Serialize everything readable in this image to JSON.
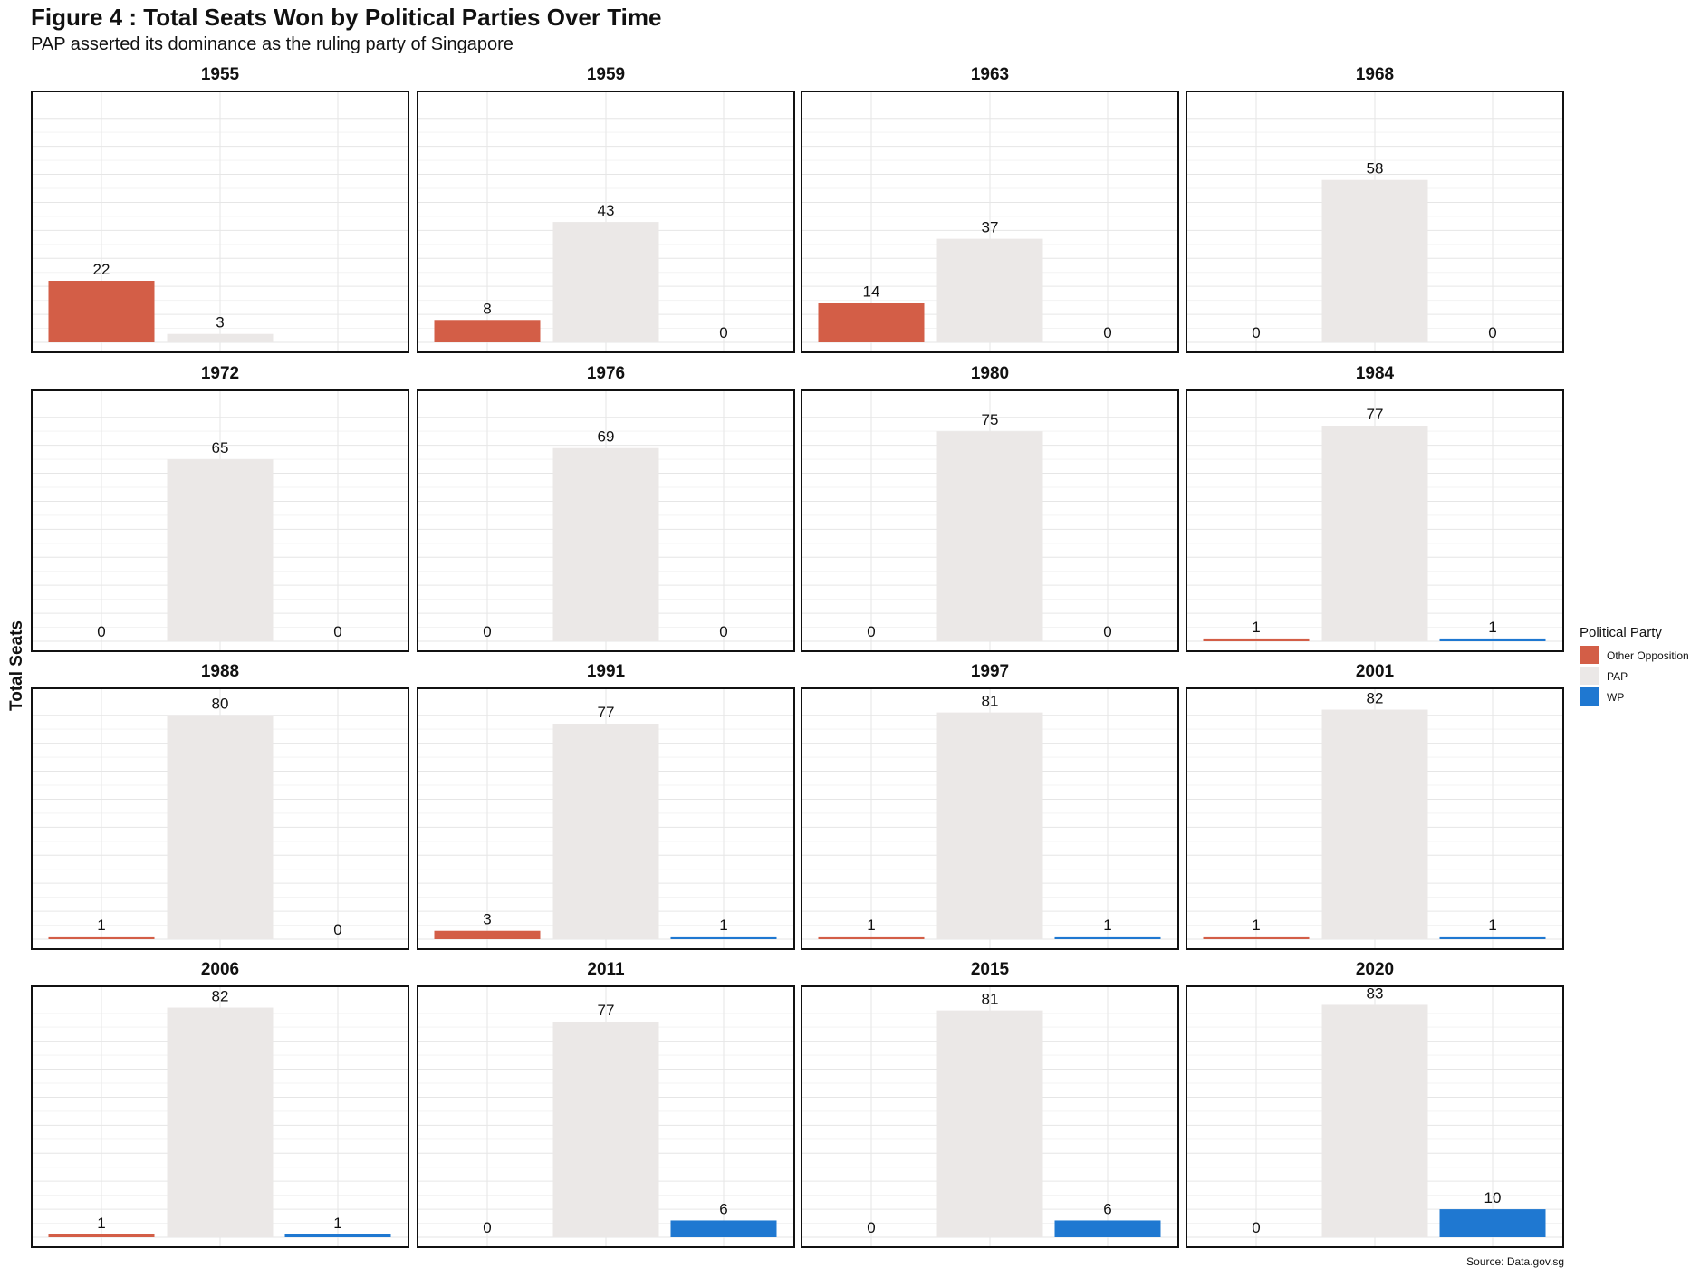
{
  "title": "Figure 4 : Total Seats Won by Political Parties Over Time",
  "subtitle": "PAP asserted its dominance as the ruling party of Singapore",
  "source": "Source: Data.gov.sg",
  "colors": {
    "Other Opposition": "#d35e47",
    "PAP": "#ebe8e7",
    "WP": "#1f78d1"
  },
  "legend_title": "Political Party",
  "legend": [
    "Other Opposition",
    "PAP",
    "WP"
  ],
  "chart_data": {
    "type": "bar",
    "faceted": "4x4 grid of panels, one per election year",
    "ylabel": "Total Seats",
    "xlabel": "",
    "ylim": [
      0,
      88
    ],
    "grid": true,
    "legend_position": "right",
    "categories": [
      "Other Opposition",
      "PAP",
      "WP"
    ],
    "panels": [
      {
        "year": "1955",
        "values": [
          22,
          3,
          null
        ],
        "labels": [
          "22",
          "3",
          ""
        ]
      },
      {
        "year": "1959",
        "values": [
          8,
          43,
          0
        ],
        "labels": [
          "8",
          "43",
          "0"
        ]
      },
      {
        "year": "1963",
        "values": [
          14,
          37,
          0
        ],
        "labels": [
          "14",
          "37",
          "0"
        ]
      },
      {
        "year": "1968",
        "values": [
          0,
          58,
          0
        ],
        "labels": [
          "0",
          "58",
          "0"
        ]
      },
      {
        "year": "1972",
        "values": [
          0,
          65,
          0
        ],
        "labels": [
          "0",
          "65",
          "0"
        ]
      },
      {
        "year": "1976",
        "values": [
          0,
          69,
          0
        ],
        "labels": [
          "0",
          "69",
          "0"
        ]
      },
      {
        "year": "1980",
        "values": [
          0,
          75,
          0
        ],
        "labels": [
          "0",
          "75",
          "0"
        ]
      },
      {
        "year": "1984",
        "values": [
          1,
          77,
          1
        ],
        "labels": [
          "1",
          "77",
          "1"
        ]
      },
      {
        "year": "1988",
        "values": [
          1,
          80,
          0
        ],
        "labels": [
          "1",
          "80",
          "0"
        ]
      },
      {
        "year": "1991",
        "values": [
          3,
          77,
          1
        ],
        "labels": [
          "3",
          "77",
          "1"
        ]
      },
      {
        "year": "1997",
        "values": [
          1,
          81,
          1
        ],
        "labels": [
          "1",
          "81",
          "1"
        ]
      },
      {
        "year": "2001",
        "values": [
          1,
          82,
          1
        ],
        "labels": [
          "1",
          "82",
          "1"
        ]
      },
      {
        "year": "2006",
        "values": [
          1,
          82,
          1
        ],
        "labels": [
          "1",
          "82",
          "1"
        ]
      },
      {
        "year": "2011",
        "values": [
          0,
          77,
          6
        ],
        "labels": [
          "0",
          "77",
          "6"
        ]
      },
      {
        "year": "2015",
        "values": [
          0,
          81,
          6
        ],
        "labels": [
          "0",
          "81",
          "6"
        ]
      },
      {
        "year": "2020",
        "values": [
          0,
          83,
          10
        ],
        "labels": [
          "0",
          "83",
          "10"
        ]
      }
    ]
  }
}
